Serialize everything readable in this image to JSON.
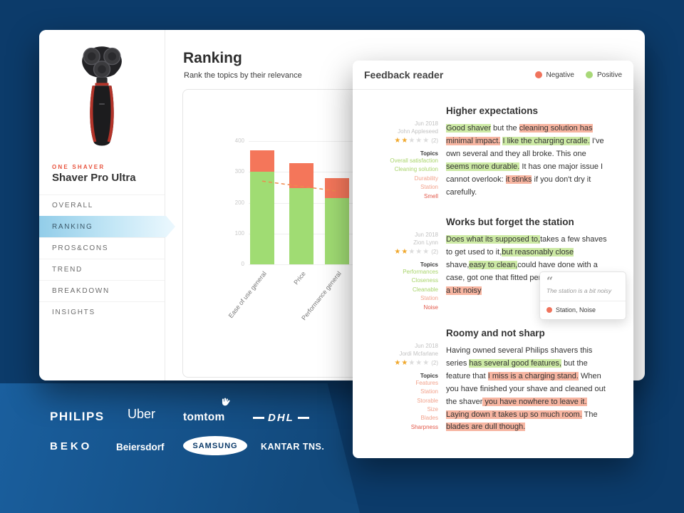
{
  "sidebar": {
    "product_label": "ONE SHAVER",
    "product_name": "Shaver Pro Ultra",
    "menu": [
      {
        "label": "OVERALL",
        "active": false
      },
      {
        "label": "RANKING",
        "active": true
      },
      {
        "label": "PROS&CONS",
        "active": false
      },
      {
        "label": "TREND",
        "active": false
      },
      {
        "label": "BREAKDOWN",
        "active": false
      },
      {
        "label": "INSIGHTS",
        "active": false
      }
    ]
  },
  "main": {
    "title": "Ranking",
    "subtitle": "Rank the topics by their relevance"
  },
  "chart_data": {
    "type": "bar",
    "stacked": true,
    "categories": [
      "Ease of use general",
      "Price",
      "Performance general"
    ],
    "series": [
      {
        "name": "Positive",
        "color": "#a0dc73",
        "values": [
          300,
          247,
          215
        ]
      },
      {
        "name": "Negative",
        "color": "#f4765a",
        "values": [
          70,
          81,
          65
        ]
      }
    ],
    "trend_line": {
      "style": "dashed",
      "color": "#ef8a4e",
      "values": [
        270,
        253,
        238
      ]
    },
    "ylim": [
      0,
      400
    ],
    "yticks": [
      0,
      100,
      200,
      300,
      400
    ],
    "grid": true,
    "note": "right side of chart hidden behind Feedback reader dialog"
  },
  "feedback": {
    "title": "Feedback reader",
    "topics_label": "Topics",
    "legend": [
      {
        "label": "Negative",
        "color": "#f0735c"
      },
      {
        "label": "Positive",
        "color": "#a8d878"
      }
    ],
    "tooltip": {
      "quote": "The station is a bit noisy",
      "tags": "Station, Noise"
    },
    "entries": [
      {
        "date": "Jun 2018",
        "author": "John Appleseed",
        "rating": 2,
        "rating_count": "(2)",
        "topics": [
          {
            "label": "Overall satisfaction",
            "s": "pos"
          },
          {
            "label": "Cleaning solution",
            "s": "pos"
          },
          {
            "label": "Durability",
            "s": "neg"
          },
          {
            "label": "Station",
            "s": "neg"
          },
          {
            "label": "Smell",
            "s": "strong"
          }
        ],
        "heading": "Higher expectations",
        "segments": [
          {
            "text": "Good shaver",
            "h": "pos"
          },
          {
            "text": " but the ",
            "h": ""
          },
          {
            "text": "cleaning solution has minimal impact.",
            "h": "neg"
          },
          {
            "text": " ",
            "h": ""
          },
          {
            "text": "I like the charging cradle.",
            "h": "pos"
          },
          {
            "text": " I've own several and they all broke. This one ",
            "h": ""
          },
          {
            "text": "seems more durable.",
            "h": "pos"
          },
          {
            "text": " It has one major issue I cannot overlook: ",
            "h": ""
          },
          {
            "text": "it stinks",
            "h": "neg"
          },
          {
            "text": " if you don't dry it carefully.",
            "h": ""
          }
        ]
      },
      {
        "date": "Jun 2018",
        "author": "Zion Lynn",
        "rating": 2,
        "rating_count": "(2)",
        "topics": [
          {
            "label": "Performances",
            "s": "pos"
          },
          {
            "label": "Closeness",
            "s": "pos"
          },
          {
            "label": "Cleanable",
            "s": "pos"
          },
          {
            "label": "Station",
            "s": "neg"
          },
          {
            "label": "Noise",
            "s": "strong"
          }
        ],
        "heading": "Works but forget the station",
        "segments": [
          {
            "text": "Does what its supposed to,",
            "h": "pos"
          },
          {
            "text": "takes a few shaves to get used to it,",
            "h": ""
          },
          {
            "text": "but reasonably close",
            "h": "pos"
          },
          {
            "text": " shave,",
            "h": ""
          },
          {
            "text": "easy to clean,",
            "h": "pos"
          },
          {
            "text": "could have done with a case, got one that fitted perfectly. ",
            "h": ""
          },
          {
            "text": "The station is a bit noisy",
            "h": "neg"
          }
        ]
      },
      {
        "date": "Jun 2018",
        "author": "Jordi Mcfarlane",
        "rating": 2,
        "rating_count": "(2)",
        "topics": [
          {
            "label": "Features",
            "s": "neg"
          },
          {
            "label": "Station",
            "s": "neg"
          },
          {
            "label": "Storable",
            "s": "neg"
          },
          {
            "label": "Size",
            "s": "neg"
          },
          {
            "label": "Blades",
            "s": "neg"
          },
          {
            "label": "Sharpness",
            "s": "strong"
          }
        ],
        "heading": "Roomy and not sharp",
        "segments": [
          {
            "text": "Having owned several Philips shavers this series ",
            "h": ""
          },
          {
            "text": "has several good features,",
            "h": "pos"
          },
          {
            "text": " but the feature that ",
            "h": ""
          },
          {
            "text": "I miss is a charging stand.",
            "h": "neg"
          },
          {
            "text": " When you have finished your shave and cleaned out the shaver",
            "h": ""
          },
          {
            "text": " you have nowhere to leave it.",
            "h": "neg"
          },
          {
            "text": " ",
            "h": ""
          },
          {
            "text": "Laying down it takes up so much room.",
            "h": "neg"
          },
          {
            "text": " The ",
            "h": ""
          },
          {
            "text": "blades are dull though.",
            "h": "neg"
          }
        ]
      }
    ]
  },
  "brands": {
    "philips": "PHILIPS",
    "uber": "Uber",
    "tomtom": "tomtom",
    "dhl": "DHL",
    "beko": "BEKO",
    "beiersdorf": "Beiersdorf",
    "samsung": "SAMSUNG",
    "kantar": "KANTAR TNS."
  },
  "colors": {
    "background": "#0c3b6a",
    "accent": "#e8543f",
    "positive": "#a8d878",
    "negative": "#f0735c",
    "highlight_pos": "#cdeaa5",
    "highlight_neg": "#f7b5a1",
    "star": "#f0a82d",
    "active_menu": "#92cde9"
  }
}
